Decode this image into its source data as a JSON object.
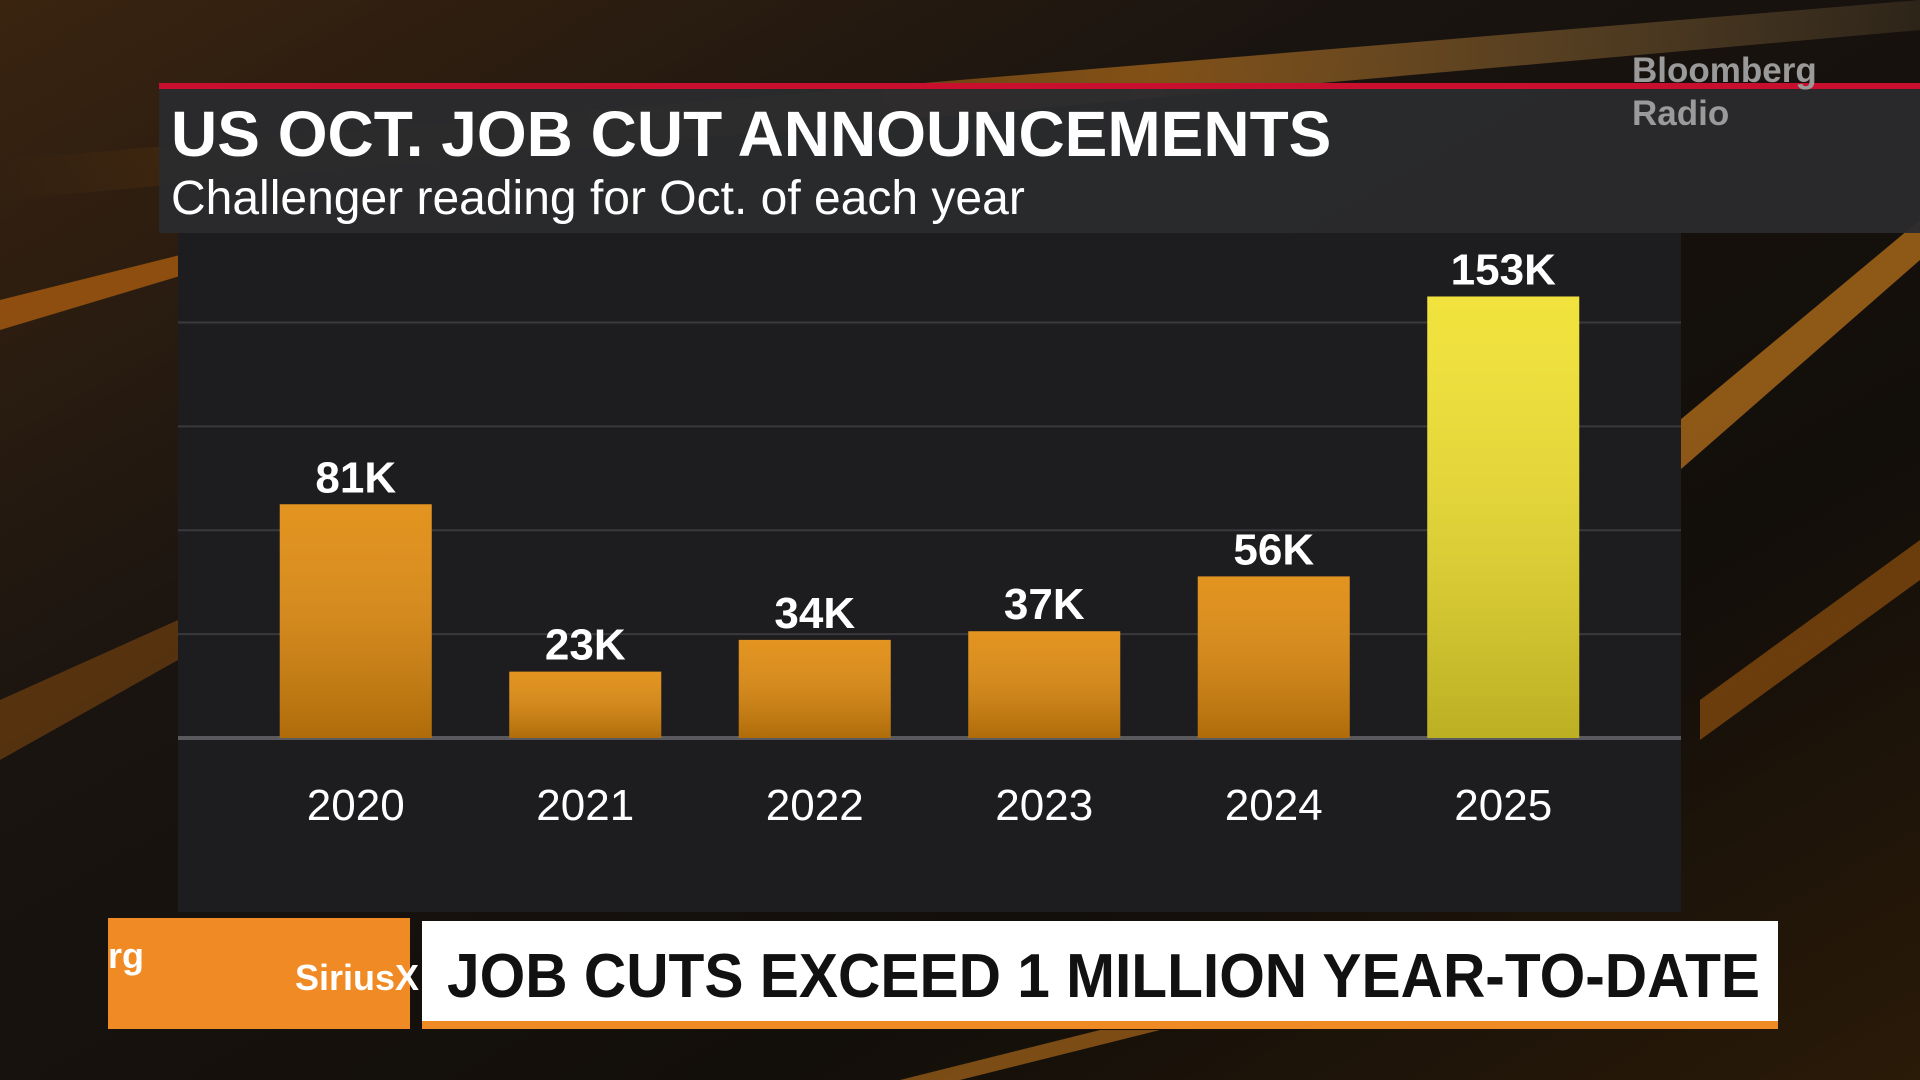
{
  "chart_data": {
    "type": "bar",
    "title": "US OCT. JOB CUT ANNOUNCEMENTS",
    "subtitle": "Challenger reading for Oct. of each year",
    "categories": [
      "2020",
      "2021",
      "2022",
      "2023",
      "2024",
      "2025"
    ],
    "values": [
      81,
      23,
      34,
      37,
      56,
      153
    ],
    "value_labels": [
      "81K",
      "23K",
      "34K",
      "37K",
      "56K",
      "153K"
    ],
    "colors": [
      "#e08a0c",
      "#e08a0c",
      "#e08a0c",
      "#e08a0c",
      "#e08a0c",
      "#f0e02c"
    ],
    "ylim": [
      0,
      175
    ],
    "yticks": [
      0,
      36,
      72,
      108,
      144
    ],
    "grid": true
  },
  "logo": [
    "Bloomberg",
    "Radio"
  ],
  "lower_third": {
    "left_text": "rg",
    "partner": "SiriusX",
    "headline": "JOB CUTS EXCEED 1 MILLION YEAR-TO-DATE"
  }
}
